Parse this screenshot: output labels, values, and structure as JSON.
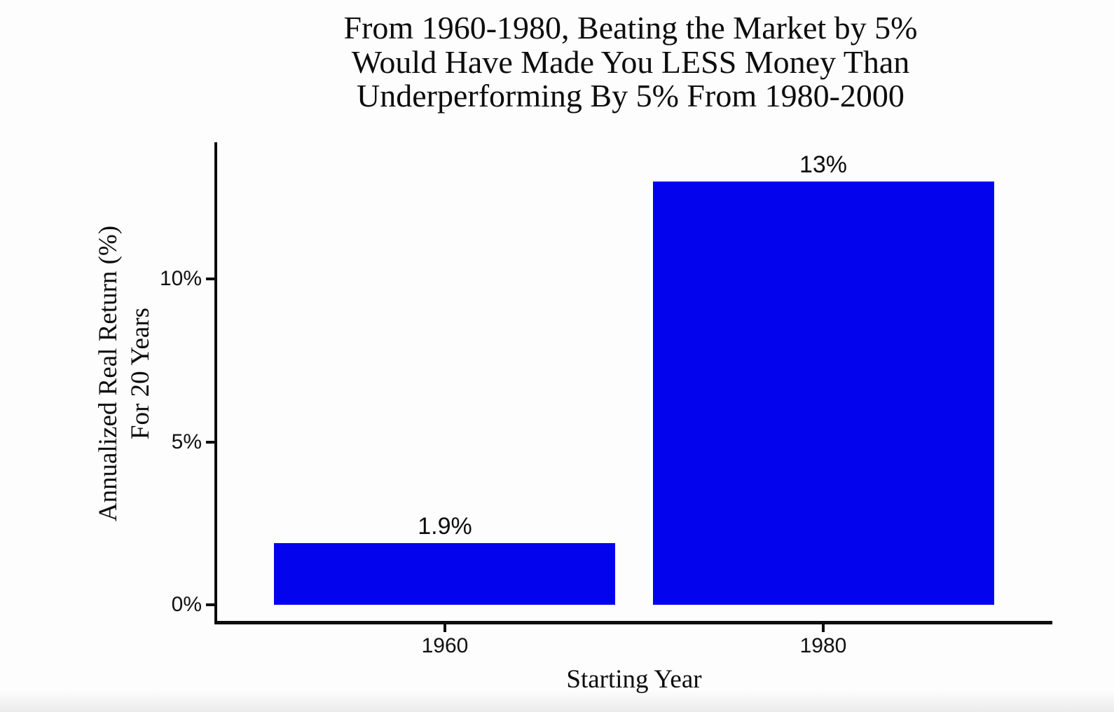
{
  "figure": {
    "background": "#fdfdfd",
    "text_color": "#0d0d0d"
  },
  "chart_data": {
    "type": "bar",
    "title": "From 1960-1980, Beating the Market by 5% Would Have Made You LESS Money Than Underperforming By 5% From 1980-2000",
    "title_lines": [
      "From 1960-1980, Beating the Market by 5%",
      "Would Have Made You LESS Money Than",
      "Underperforming By 5% From 1980-2000"
    ],
    "categories": [
      "1960",
      "1980"
    ],
    "values": [
      1.9,
      13
    ],
    "bar_labels": [
      "1.9%",
      "13%"
    ],
    "bar_color": "#0303ee",
    "xlabel": "Starting Year",
    "ylabel": "Annualized Real Return (%) For 20 Years",
    "ylabel_lines": [
      "Annualized Real Return (%)",
      "For 20 Years"
    ],
    "yticks": [
      {
        "value": 0,
        "label": "0%"
      },
      {
        "value": 5,
        "label": "5%"
      },
      {
        "value": 10,
        "label": "10%"
      }
    ],
    "ylim": [
      0,
      14.2
    ],
    "grid": false,
    "legend": "none"
  }
}
